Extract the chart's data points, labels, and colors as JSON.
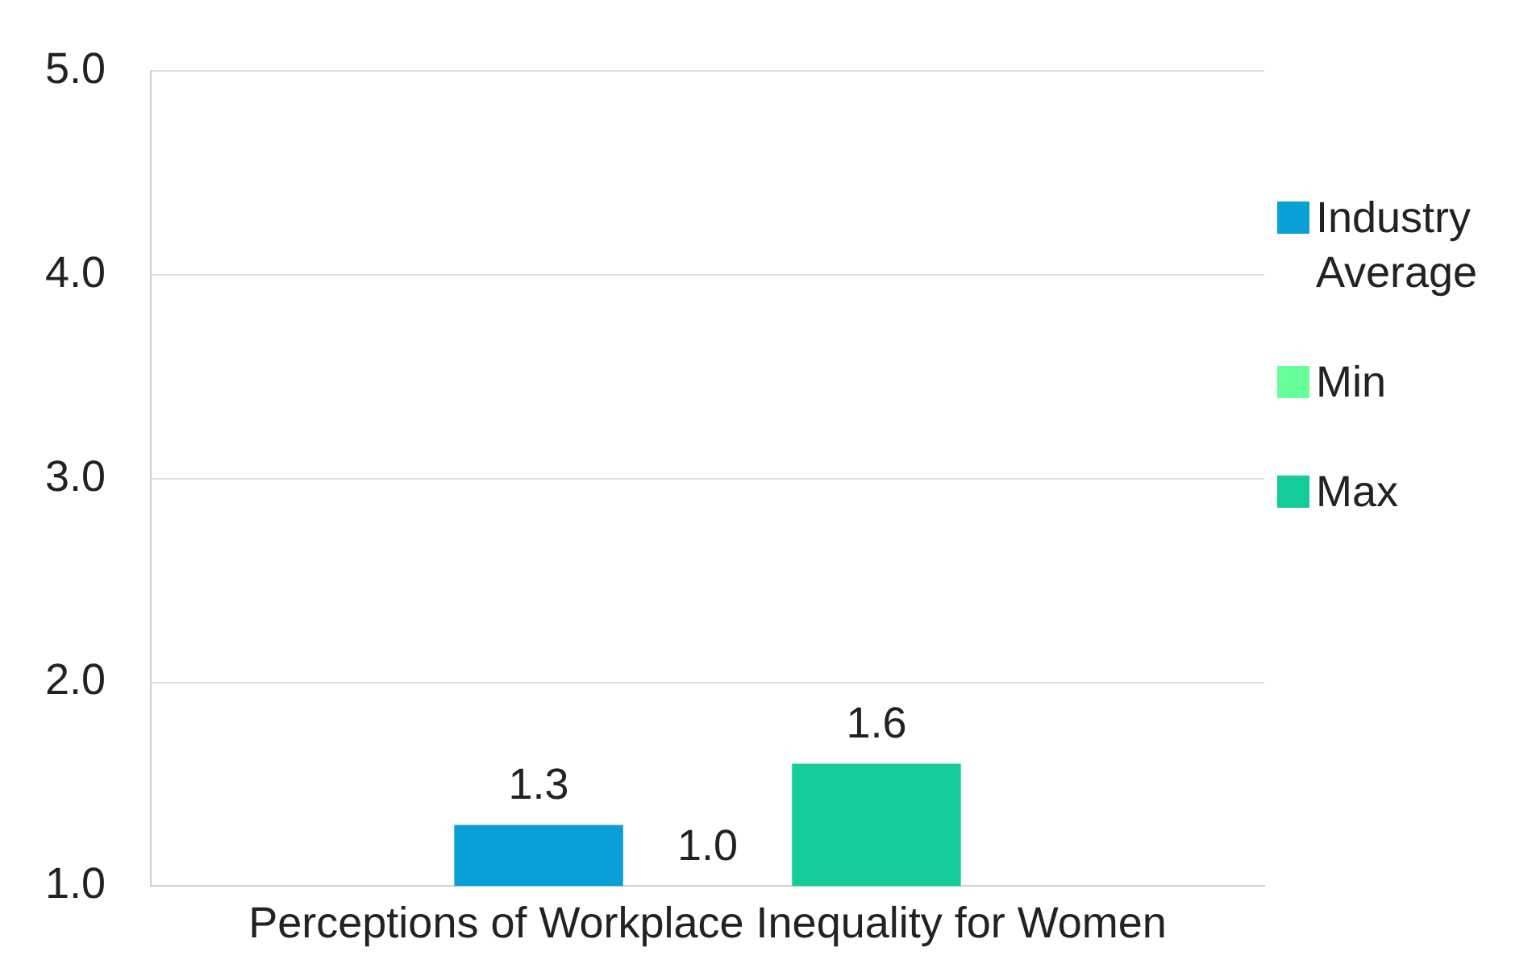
{
  "chart_data": {
    "type": "bar",
    "categories": [
      "Perceptions of Workplace Inequality for Women"
    ],
    "series": [
      {
        "name": "Industry Average",
        "color": "#0a9fd6",
        "values": [
          1.3
        ],
        "value_labels": [
          "1.3"
        ]
      },
      {
        "name": "Min",
        "color": "#66ff99",
        "values": [
          1.0
        ],
        "value_labels": [
          "1.0"
        ]
      },
      {
        "name": "Max",
        "color": "#14cc99",
        "values": [
          1.6
        ],
        "value_labels": [
          "1.6"
        ]
      }
    ],
    "ylim": [
      1,
      5
    ],
    "yticks": [
      {
        "value": 1,
        "label": "1.0"
      },
      {
        "value": 2,
        "label": "2.0"
      },
      {
        "value": 3,
        "label": "3.0"
      },
      {
        "value": 4,
        "label": "4.0"
      },
      {
        "value": 5,
        "label": "5.0"
      }
    ],
    "grid": "y",
    "legend": "right"
  }
}
